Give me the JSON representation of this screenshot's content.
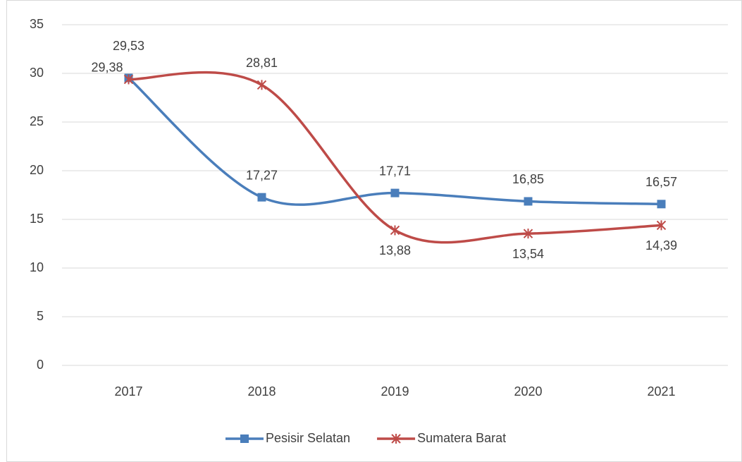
{
  "chart_data": {
    "type": "line",
    "categories": [
      "2017",
      "2018",
      "2019",
      "2020",
      "2021"
    ],
    "series": [
      {
        "name": "Pesisir Selatan",
        "color": "#4a7ebb",
        "marker": "square",
        "values": [
          29.53,
          17.27,
          17.71,
          16.85,
          16.57
        ],
        "value_labels": [
          "29,53",
          "17,27",
          "17,71",
          "16,85",
          "16,57"
        ]
      },
      {
        "name": "Sumatera Barat",
        "color": "#be4b48",
        "marker": "asterisk",
        "values": [
          29.38,
          28.81,
          13.88,
          13.54,
          14.39
        ],
        "value_labels": [
          "29,38",
          "28,81",
          "13,88",
          "13,54",
          "14,39"
        ]
      }
    ],
    "ylim": [
      0,
      35
    ],
    "yticks": [
      0,
      5,
      10,
      15,
      20,
      25,
      30,
      35
    ],
    "grid": true,
    "smooth": true,
    "legend": "bottom"
  }
}
